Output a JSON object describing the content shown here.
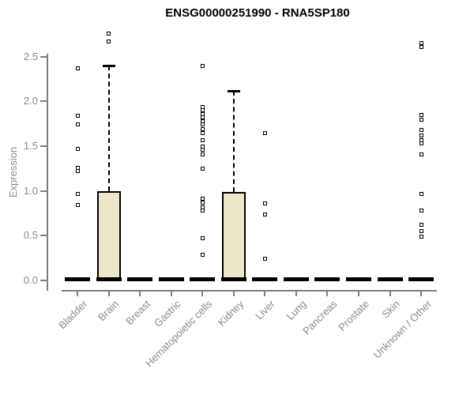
{
  "title": "ENSG00000251990 - RNA5SP180",
  "chart_data": {
    "type": "boxplot",
    "title": "ENSG00000251990 - RNA5SP180",
    "xlabel": "",
    "ylabel": "Expression",
    "ylim": [
      0,
      2.8
    ],
    "yticks": [
      0.0,
      0.5,
      1.0,
      1.5,
      2.0,
      2.5
    ],
    "ytick_labels": [
      "0.0",
      "0.5",
      "1.0",
      "1.5",
      "2.0",
      "2.5"
    ],
    "grid": false,
    "legend": "none",
    "categories": [
      "Bladder",
      "Brain",
      "Breast",
      "Gastric",
      "Hematopoietic cells",
      "Kidney",
      "Liver",
      "Lung",
      "Pancreas",
      "Prostate",
      "Skin",
      "Unknown / Other"
    ],
    "series": [
      {
        "label": "Bladder",
        "q1": 0,
        "median": 0,
        "q3": 0,
        "whisker_low": 0,
        "whisker_high": 0,
        "outliers": [
          2.37,
          1.84,
          1.74,
          1.47,
          1.26,
          1.22,
          0.97,
          0.84
        ]
      },
      {
        "label": "Brain",
        "q1": 0,
        "median": 0.02,
        "q3": 1.0,
        "whisker_low": 0,
        "whisker_high": 2.4,
        "outliers": [
          2.76,
          2.67
        ]
      },
      {
        "label": "Breast",
        "q1": 0,
        "median": 0,
        "q3": 0,
        "whisker_low": 0,
        "whisker_high": 0,
        "outliers": []
      },
      {
        "label": "Gastric",
        "q1": 0,
        "median": 0,
        "q3": 0,
        "whisker_low": 0,
        "whisker_high": 0,
        "outliers": []
      },
      {
        "label": "Hematopoietic cells",
        "q1": 0,
        "median": 0,
        "q3": 0,
        "whisker_low": 0,
        "whisker_high": 0,
        "outliers": [
          2.4,
          1.94,
          1.9,
          1.86,
          1.82,
          1.78,
          1.74,
          1.69,
          1.65,
          1.57,
          1.5,
          1.46,
          1.41,
          1.25,
          0.91,
          0.87,
          0.82,
          0.78,
          0.47,
          0.29
        ]
      },
      {
        "label": "Kidney",
        "q1": 0,
        "median": 0.02,
        "q3": 0.99,
        "whisker_low": 0,
        "whisker_high": 2.12,
        "outliers": []
      },
      {
        "label": "Liver",
        "q1": 0,
        "median": 0,
        "q3": 0,
        "whisker_low": 0,
        "whisker_high": 0,
        "outliers": [
          1.65,
          0.86,
          0.74,
          0.24
        ]
      },
      {
        "label": "Lung",
        "q1": 0,
        "median": 0,
        "q3": 0,
        "whisker_low": 0,
        "whisker_high": 0,
        "outliers": []
      },
      {
        "label": "Pancreas",
        "q1": 0,
        "median": 0,
        "q3": 0,
        "whisker_low": 0,
        "whisker_high": 0,
        "outliers": []
      },
      {
        "label": "Prostate",
        "q1": 0,
        "median": 0,
        "q3": 0,
        "whisker_low": 0,
        "whisker_high": 0,
        "outliers": []
      },
      {
        "label": "Skin",
        "q1": 0,
        "median": 0,
        "q3": 0,
        "whisker_low": 0,
        "whisker_high": 0,
        "outliers": []
      },
      {
        "label": "Unknown / Other",
        "q1": 0,
        "median": 0,
        "q3": 0,
        "whisker_low": 0,
        "whisker_high": 0,
        "outliers": [
          2.65,
          2.61,
          1.85,
          1.8,
          1.68,
          1.62,
          1.57,
          1.53,
          1.41,
          0.97,
          0.78,
          0.62,
          0.55,
          0.49
        ]
      }
    ],
    "colors": {
      "box_fill": "#ece7cb",
      "box_border": "#000000",
      "whisker": "#000000",
      "outlier_marker": "#000000",
      "axis_line": "#7f7f7f",
      "tick_label": "#8a8a8a",
      "title": "#000000"
    }
  }
}
